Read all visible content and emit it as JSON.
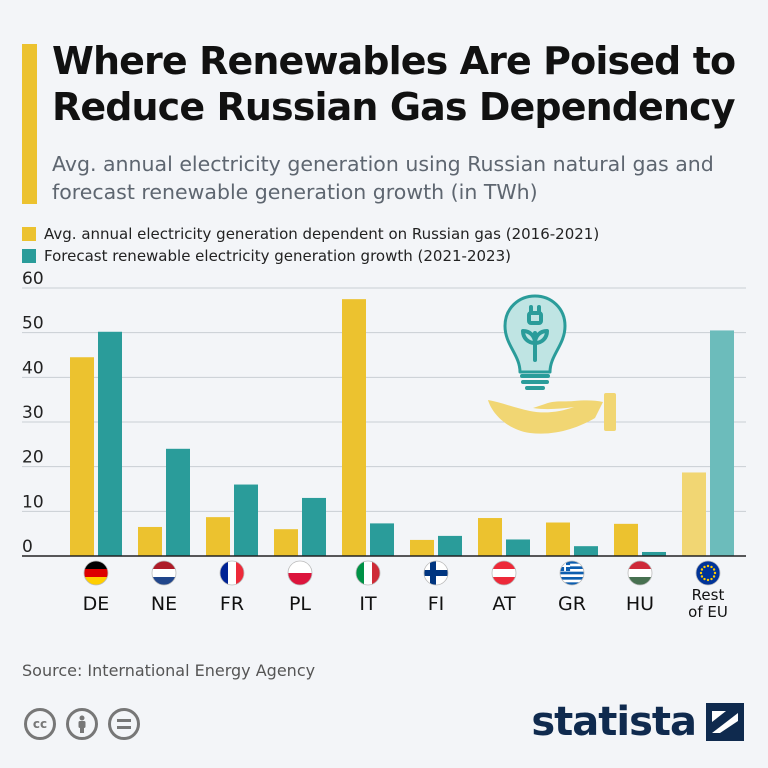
{
  "header": {
    "title": "Where Renewables Are Poised to Reduce Russian Gas Dependency",
    "subtitle": "Avg. annual electricity generation using Russian natural gas and forecast renewable generation growth (in TWh)"
  },
  "colors": {
    "accent": "#ecc22f",
    "gas": "#ecc22f",
    "renewable": "#2a9c9a",
    "gas_rest": "#f1d673",
    "renewable_rest": "#6cbcbb",
    "grid": "#c9ced4",
    "brand": "#0f2a4e"
  },
  "chart_data": {
    "type": "bar",
    "categories": [
      "DE",
      "NE",
      "FR",
      "PL",
      "IT",
      "FI",
      "AT",
      "GR",
      "HU",
      "Rest of EU"
    ],
    "series": [
      {
        "name": "Avg. annual electricity generation dependent on Russian gas (2016-2021)",
        "values": [
          44.5,
          6.5,
          8.7,
          6.0,
          57.5,
          3.6,
          8.5,
          7.5,
          7.2,
          18.7
        ]
      },
      {
        "name": "Forecast renewable electricity generation growth (2021-2023)",
        "values": [
          50.2,
          24.0,
          16.0,
          13.0,
          7.3,
          4.5,
          3.7,
          2.2,
          0.9,
          50.5
        ]
      }
    ],
    "yticks": [
      0,
      10,
      20,
      30,
      40,
      50,
      60
    ],
    "ylim": [
      0,
      60
    ],
    "grid": true,
    "legend_position": "top-left",
    "flags": [
      "flag-germany",
      "flag-netherlands",
      "flag-france",
      "flag-poland",
      "flag-italy",
      "flag-finland",
      "flag-austria",
      "flag-greece",
      "flag-hungary",
      "flag-eu"
    ]
  },
  "footer": {
    "source": "Source: International Energy Agency",
    "brand": "statista"
  }
}
